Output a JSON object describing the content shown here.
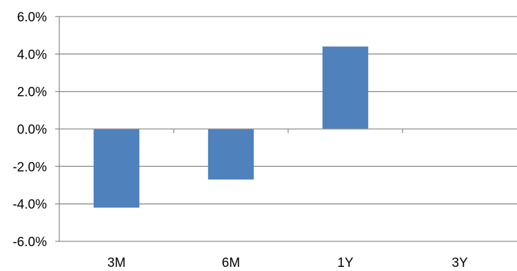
{
  "chart_data": {
    "type": "bar",
    "categories": [
      "3M",
      "6M",
      "1Y",
      "3Y"
    ],
    "values": [
      -4.2,
      -2.7,
      4.4,
      null
    ],
    "ylim": [
      -6.0,
      6.0
    ],
    "yticks": [
      6.0,
      4.0,
      2.0,
      0.0,
      -2.0,
      -4.0,
      -6.0
    ],
    "ytick_labels": [
      "6.0%",
      "4.0%",
      "2.0%",
      "0.0%",
      "-2.0%",
      "-4.0%",
      "-6.0%"
    ],
    "title": "",
    "xlabel": "",
    "ylabel": "",
    "grid": true,
    "legend": "none",
    "bar_color": "#4f81bd"
  }
}
